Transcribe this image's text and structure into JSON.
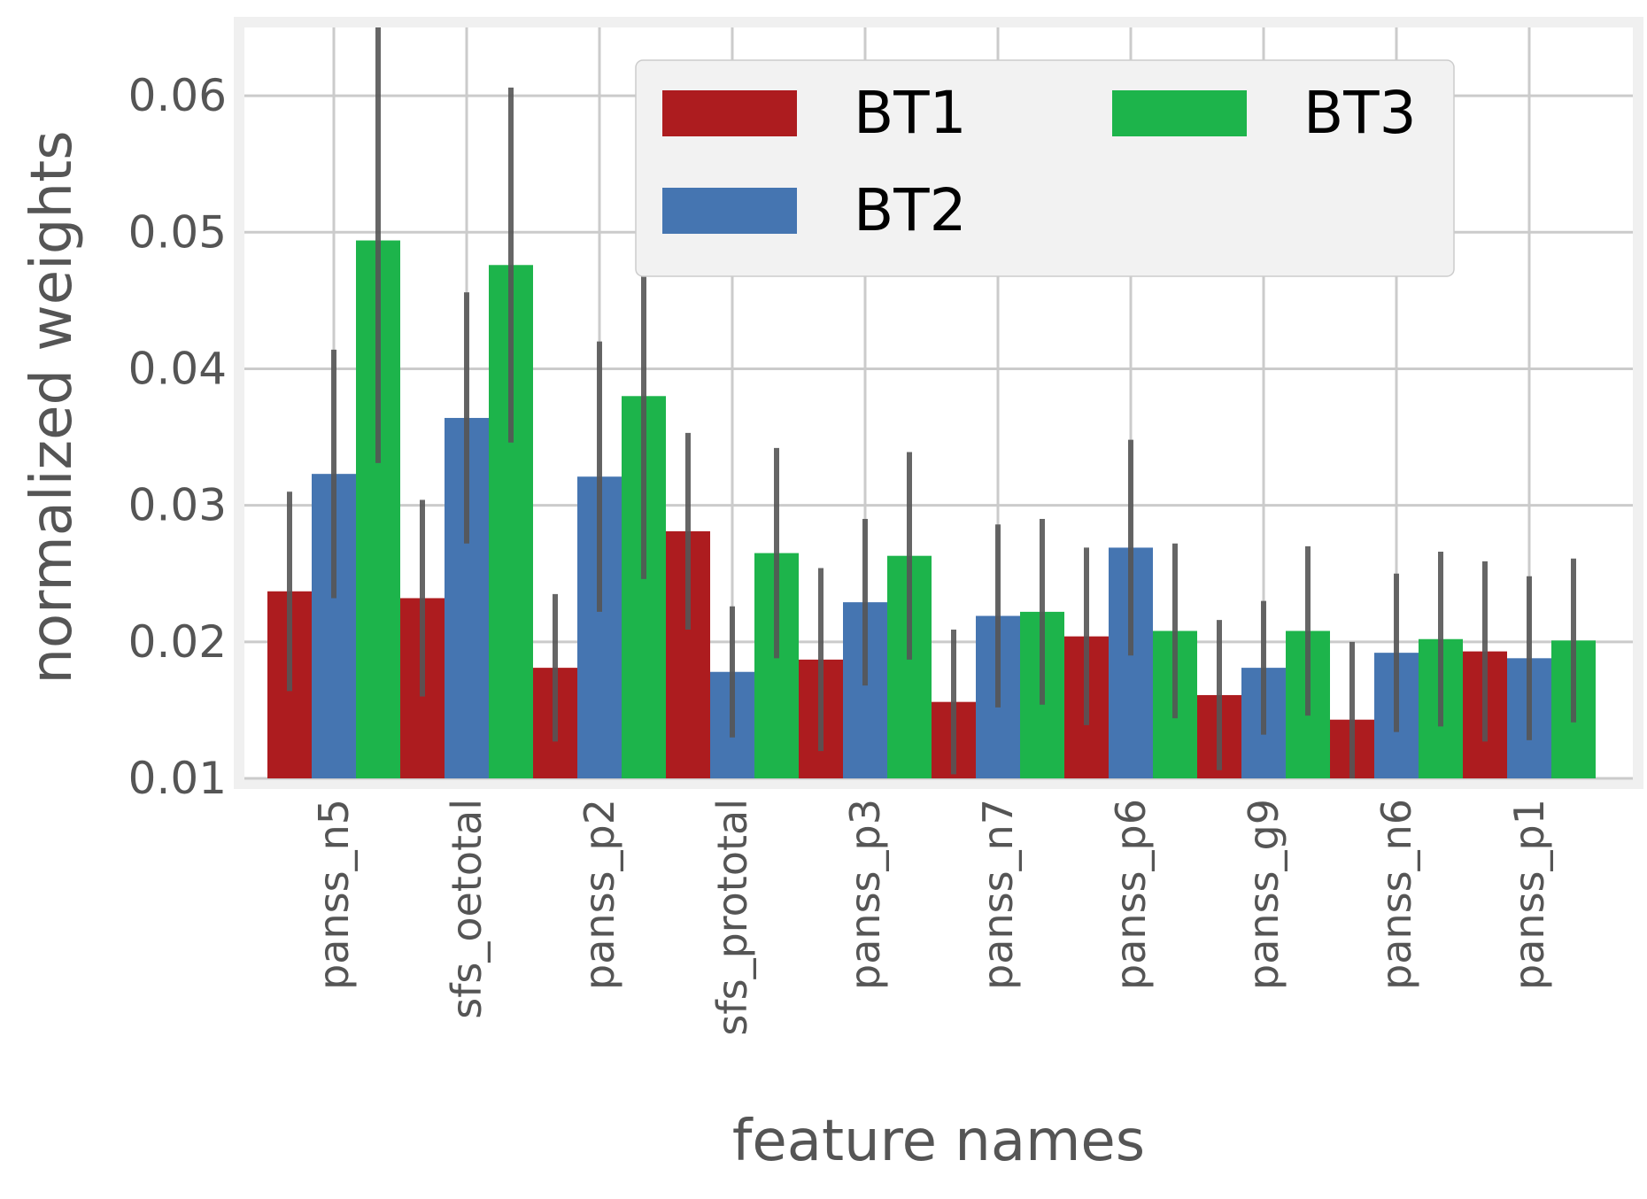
{
  "chart_data": {
    "type": "bar",
    "title": "",
    "xlabel": "feature names",
    "ylabel": "normalized weights",
    "ylim": [
      0.01,
      0.065
    ],
    "yticks": [
      0.01,
      0.02,
      0.03,
      0.04,
      0.05,
      0.06
    ],
    "ytick_labels": [
      "0.01",
      "0.02",
      "0.03",
      "0.04",
      "0.05",
      "0.06"
    ],
    "grid": true,
    "legend_position": "top-right",
    "legend_columns": 2,
    "categories": [
      "panss_n5",
      "sfs_oetotal",
      "panss_p2",
      "sfs_prototal",
      "panss_p3",
      "panss_n7",
      "panss_p6",
      "panss_g9",
      "panss_n6",
      "panss_p1"
    ],
    "series": [
      {
        "name": "BT1",
        "color": "#ad1c1f",
        "values": [
          0.0237,
          0.0232,
          0.0181,
          0.0281,
          0.0187,
          0.0156,
          0.0204,
          0.0161,
          0.0143,
          0.0193
        ],
        "errors": [
          0.0073,
          0.0072,
          0.0054,
          0.0072,
          0.0067,
          0.0053,
          0.0065,
          0.0055,
          0.0057,
          0.0066
        ]
      },
      {
        "name": "BT2",
        "color": "#4575b1",
        "values": [
          0.0323,
          0.0364,
          0.0321,
          0.0178,
          0.0229,
          0.0219,
          0.0269,
          0.0181,
          0.0192,
          0.0188
        ],
        "errors": [
          0.0091,
          0.0092,
          0.0099,
          0.0048,
          0.0061,
          0.0067,
          0.0079,
          0.0049,
          0.0058,
          0.006
        ]
      },
      {
        "name": "BT3",
        "color": "#1db44b",
        "values": [
          0.0494,
          0.0476,
          0.038,
          0.0265,
          0.0263,
          0.0222,
          0.0208,
          0.0208,
          0.0202,
          0.0201
        ],
        "errors": [
          0.0163,
          0.013,
          0.0134,
          0.0077,
          0.0076,
          0.0068,
          0.0064,
          0.0062,
          0.0064,
          0.006
        ]
      }
    ],
    "errorbar_color": "#555555",
    "colors": {
      "background": "#ffffff",
      "frame": "#f0f0f0",
      "grid": "#cbcbcb",
      "legend_face": "#f2f2f2",
      "tick_text": "#555555"
    }
  }
}
